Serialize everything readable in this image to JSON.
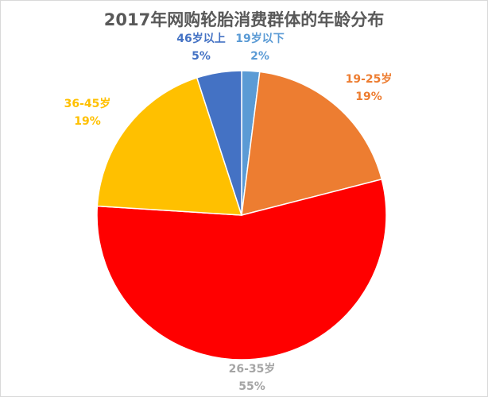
{
  "chart_data": {
    "type": "pie",
    "title": "2017年网购轮胎消费群体的年龄分布",
    "categories": [
      "19岁以下",
      "19-25岁",
      "26-35岁",
      "36-45岁",
      "46岁以上"
    ],
    "values": [
      2,
      19,
      55,
      19,
      5
    ],
    "value_labels": [
      "2%",
      "19%",
      "55%",
      "19%",
      "5%"
    ],
    "colors": [
      "#5B9BD5",
      "#ED7D31",
      "#FF0000",
      "#FFC000",
      "#4472C4"
    ],
    "label_colors": [
      "#5B9BD5",
      "#ED7D31",
      "#A5A5A5",
      "#FFC000",
      "#4472C4"
    ],
    "start_angle_deg": 0,
    "direction": "clockwise",
    "legend": "none"
  }
}
